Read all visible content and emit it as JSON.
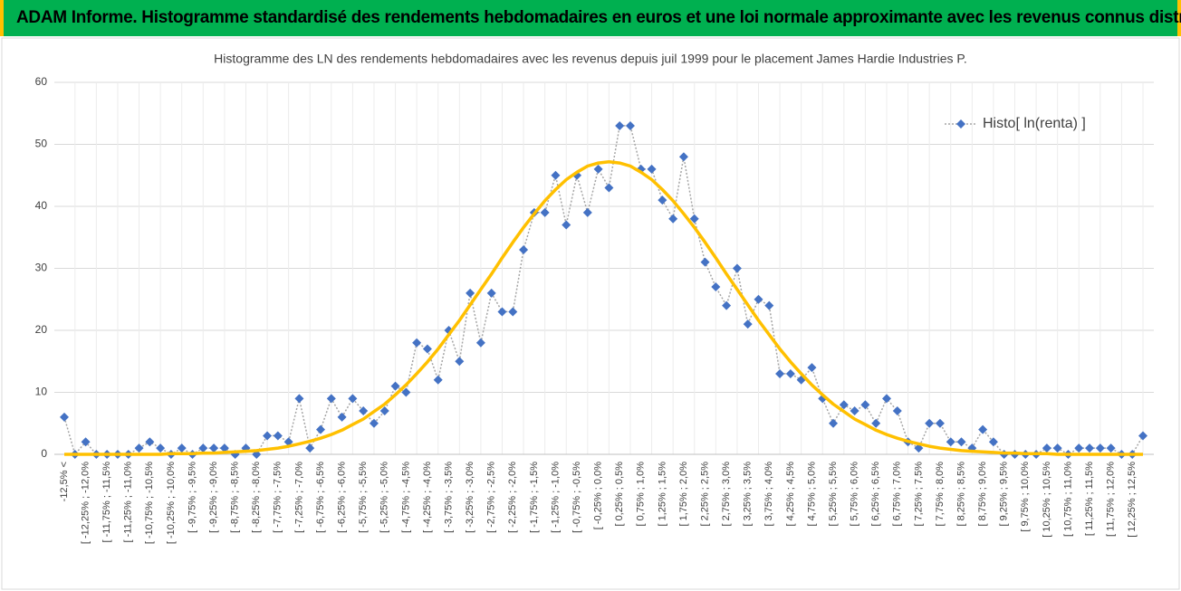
{
  "header": {
    "title": "ADAM Informe. Histogramme standardisé des rendements hebdomadaires en euros et une loi normale approximante avec les revenus connus distribués"
  },
  "chart_data": {
    "type": "line",
    "title": "Histogramme des LN des rendements hebdomadaires avec les revenus depuis juil 1999 pour le placement James Hardie Industries P.",
    "categories": [
      "-12,5% <",
      null,
      "[ -12,25% ; -12,0%",
      null,
      "[ -11,75% ; -11,5%",
      null,
      "[ -11,25% ; -11,0%",
      null,
      "[ -10,75% ; -10,5%",
      null,
      "[ -10,25% ; -10,0%",
      null,
      "[ -9,75% ; -9,5%",
      null,
      "[ -9,25% ; -9,0%",
      null,
      "[ -8,75% ; -8,5%",
      null,
      "[ -8,25% ; -8,0%",
      null,
      "[ -7,75% ; -7,5%",
      null,
      "[ -7,25% ; -7,0%",
      null,
      "[ -6,75% ; -6,5%",
      null,
      "[ -6,25% ; -6,0%",
      null,
      "[ -5,75% ; -5,5%",
      null,
      "[ -5,25% ; -5,0%",
      null,
      "[ -4,75% ; -4,5%",
      null,
      "[ -4,25% ; -4,0%",
      null,
      "[ -3,75% ; -3,5%",
      null,
      "[ -3,25% ; -3,0%",
      null,
      "[ -2,75% ; -2,5%",
      null,
      "[ -2,25% ; -2,0%",
      null,
      "[ -1,75% ; -1,5%",
      null,
      "[ -1,25% ; -1,0%",
      null,
      "[ -0,75% ; -0,5%",
      null,
      "[ -0,25% ; 0,0%",
      null,
      "[ 0,25% ; 0,5%",
      null,
      "[ 0,75% ; 1,0%",
      null,
      "[ 1,25% ; 1,5%",
      null,
      "[ 1,75% ; 2,0%",
      null,
      "[ 2,25% ; 2,5%",
      null,
      "[ 2,75% ; 3,0%",
      null,
      "[ 3,25% ; 3,5%",
      null,
      "[ 3,75% ; 4,0%",
      null,
      "[ 4,25% ; 4,5%",
      null,
      "[ 4,75% ; 5,0%",
      null,
      "[ 5,25% ; 5,5%",
      null,
      "[ 5,75% ; 6,0%",
      null,
      "[ 6,25% ; 6,5%",
      null,
      "[ 6,75% ; 7,0%",
      null,
      "[ 7,25% ; 7,5%",
      null,
      "[ 7,75% ; 8,0%",
      null,
      "[ 8,25% ; 8,5%",
      null,
      "[ 8,75% ; 9,0%",
      null,
      "[ 9,25% ; 9,5%",
      null,
      "[ 9,75% ; 10,0%",
      null,
      "[ 10,25% ; 10,5%",
      null,
      "[ 10,75% ; 11,0%",
      null,
      "[ 11,25% ; 11,5%",
      null,
      "[ 11,75% ; 12,0%",
      null,
      "[ 12,25% ; 12,5%",
      null
    ],
    "series": [
      {
        "name": "Histo[ ln(renta) ]",
        "color": "#4472c4",
        "line_color": "#a5a5a5",
        "marker": "diamond",
        "line_style": "dotted",
        "values": [
          6,
          0,
          2,
          0,
          0,
          0,
          0,
          1,
          2,
          1,
          0,
          1,
          0,
          1,
          1,
          1,
          0,
          1,
          0,
          3,
          3,
          2,
          9,
          1,
          4,
          9,
          6,
          9,
          7,
          5,
          7,
          11,
          10,
          18,
          17,
          12,
          20,
          15,
          26,
          18,
          26,
          23,
          23,
          33,
          39,
          39,
          45,
          37,
          45,
          39,
          46,
          43,
          53,
          53,
          46,
          46,
          41,
          38,
          48,
          38,
          31,
          27,
          24,
          30,
          21,
          25,
          24,
          13,
          13,
          12,
          14,
          9,
          5,
          8,
          7,
          8,
          5,
          9,
          7,
          2,
          1,
          5,
          5,
          2,
          2,
          1,
          4,
          2,
          0,
          0,
          0,
          0,
          1,
          1,
          0,
          1,
          1,
          1,
          1,
          0,
          0,
          3
        ]
      },
      {
        "color": "#ffc000",
        "marker": "none",
        "line_style": "solid",
        "values": [
          0,
          0,
          0,
          0,
          0,
          0,
          0,
          0,
          0,
          0,
          0.1,
          0.1,
          0.1,
          0.2,
          0.2,
          0.3,
          0.4,
          0.5,
          0.6,
          0.8,
          1.0,
          1.3,
          1.7,
          2.1,
          2.6,
          3.2,
          3.9,
          4.8,
          5.7,
          6.9,
          8.1,
          9.6,
          11.2,
          13.0,
          14.9,
          17.0,
          19.3,
          21.6,
          24.1,
          26.6,
          29.1,
          31.7,
          34.2,
          36.6,
          38.8,
          40.9,
          42.7,
          44.3,
          45.5,
          46.5,
          47.0,
          47.2,
          47.0,
          46.5,
          45.5,
          44.3,
          42.7,
          40.9,
          38.8,
          36.6,
          34.2,
          31.7,
          29.1,
          26.6,
          24.1,
          21.6,
          19.3,
          17.0,
          14.9,
          13.0,
          11.2,
          9.6,
          8.1,
          6.9,
          5.7,
          4.8,
          3.9,
          3.2,
          2.6,
          2.1,
          1.7,
          1.3,
          1.0,
          0.8,
          0.6,
          0.5,
          0.4,
          0.3,
          0.2,
          0.2,
          0.1,
          0.1,
          0.1,
          0,
          0,
          0,
          0,
          0,
          0,
          0,
          0,
          0
        ]
      }
    ],
    "ylim": [
      0,
      60
    ],
    "yticks": [
      0,
      10,
      20,
      30,
      40,
      50,
      60
    ],
    "grid": true,
    "legend": "top-right"
  }
}
